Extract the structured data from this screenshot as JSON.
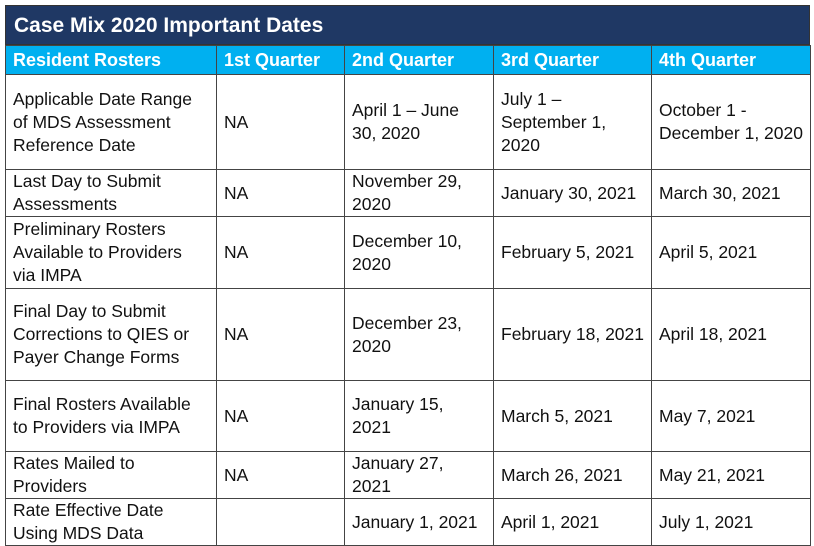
{
  "title": "Case Mix 2020 Important Dates",
  "table": {
    "header": [
      "Resident Rosters",
      "1st Quarter",
      "2nd Quarter",
      "3rd Quarter",
      "4th Quarter"
    ],
    "rows": [
      [
        "Applicable Date Range of MDS Assessment Reference Date",
        "NA",
        "April 1 – June 30, 2020",
        "July 1 – September 1, 2020",
        "October 1 - December 1, 2020"
      ],
      [
        "Last Day to Submit Assessments",
        "NA",
        "November 29, 2020",
        "January 30, 2021",
        "March 30, 2021"
      ],
      [
        "Preliminary Rosters Available to Providers via IMPA",
        "NA",
        "December 10, 2020",
        "February 5, 2021",
        "April 5, 2021"
      ],
      [
        "Final Day to Submit Corrections to QIES or Payer Change Forms",
        "NA",
        "December 23, 2020",
        "February 18, 2021",
        "April 18, 2021"
      ],
      [
        "Final Rosters Available to Providers via IMPA",
        "NA",
        "January 15, 2021",
        "March 5, 2021",
        "May 7, 2021"
      ],
      [
        "Rates Mailed to Providers",
        "NA",
        "January 27, 2021",
        "March 26, 2021",
        "May 21, 2021"
      ],
      [
        "Rate Effective Date Using MDS Data",
        null,
        "January 1, 2021",
        "April 1, 2021",
        "July 1, 2021"
      ]
    ]
  }
}
